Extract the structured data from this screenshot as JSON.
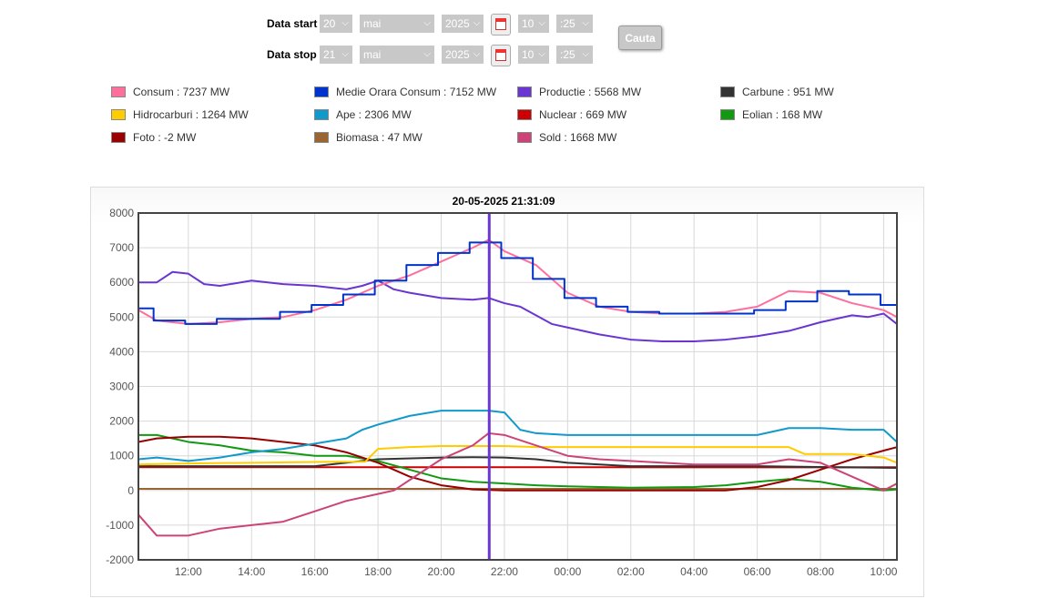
{
  "form": {
    "start_label": "Data start",
    "stop_label": "Data stop",
    "start": {
      "day": "20",
      "month": "mai",
      "year": "2025",
      "hour": "10",
      "minute": ":25"
    },
    "stop": {
      "day": "21",
      "month": "mai",
      "year": "2025",
      "hour": "10",
      "minute": ":25"
    },
    "search_label": "Cauta"
  },
  "legend": [
    {
      "label": "Consum : 7237 MW",
      "color": "#ff6f9c"
    },
    {
      "label": "Medie Orara Consum : 7152 MW",
      "color": "#0033cc"
    },
    {
      "label": "Productie : 5568 MW",
      "color": "#6a35d0"
    },
    {
      "label": "Carbune : 951 MW",
      "color": "#333333"
    },
    {
      "label": "Hidrocarburi : 1264 MW",
      "color": "#ffcc00"
    },
    {
      "label": "Ape : 2306 MW",
      "color": "#1199cc"
    },
    {
      "label": "Nuclear : 669 MW",
      "color": "#cc0000"
    },
    {
      "label": "Eolian : 168 MW",
      "color": "#119911"
    },
    {
      "label": "Foto : -2 MW",
      "color": "#990000"
    },
    {
      "label": "Biomasa : 47 MW",
      "color": "#996633"
    },
    {
      "label": "Sold : 1668 MW",
      "color": "#cc4477"
    }
  ],
  "chart_data": {
    "type": "line",
    "title": "20-05-2025 21:31:09",
    "xlabel": "",
    "ylabel": "",
    "x_unit": "hours from 20-05-2025 00:00",
    "xlim": [
      10.42,
      34.42
    ],
    "ylim": [
      -2000,
      8000
    ],
    "yticks": [
      "-2000",
      "-1000",
      "0",
      "1000",
      "2000",
      "3000",
      "4000",
      "5000",
      "6000",
      "7000",
      "8000"
    ],
    "xticks": [
      {
        "v": 12,
        "l": "12:00"
      },
      {
        "v": 14,
        "l": "14:00"
      },
      {
        "v": 16,
        "l": "16:00"
      },
      {
        "v": 18,
        "l": "18:00"
      },
      {
        "v": 20,
        "l": "20:00"
      },
      {
        "v": 22,
        "l": "22:00"
      },
      {
        "v": 24,
        "l": "00:00"
      },
      {
        "v": 26,
        "l": "02:00"
      },
      {
        "v": 28,
        "l": "04:00"
      },
      {
        "v": 30,
        "l": "06:00"
      },
      {
        "v": 32,
        "l": "08:00"
      },
      {
        "v": 34,
        "l": "10:00"
      }
    ],
    "cursor_x": 21.52,
    "series": [
      {
        "name": "Biomasa",
        "step": false,
        "points": [
          [
            10.42,
            47
          ],
          [
            34.42,
            47
          ]
        ]
      },
      {
        "name": "Nuclear",
        "step": false,
        "points": [
          [
            10.42,
            670
          ],
          [
            20,
            670
          ],
          [
            30,
            668
          ],
          [
            34.42,
            669
          ]
        ]
      },
      {
        "name": "Carbune",
        "step": false,
        "points": [
          [
            10.42,
            700
          ],
          [
            16,
            700
          ],
          [
            17.5,
            850
          ],
          [
            18,
            900
          ],
          [
            20,
            950
          ],
          [
            21,
            960
          ],
          [
            22,
            950
          ],
          [
            23,
            900
          ],
          [
            24,
            800
          ],
          [
            26,
            700
          ],
          [
            30,
            700
          ],
          [
            34.42,
            650
          ]
        ]
      },
      {
        "name": "Eolian",
        "step": false,
        "points": [
          [
            10.42,
            1600
          ],
          [
            11,
            1600
          ],
          [
            12,
            1400
          ],
          [
            13,
            1300
          ],
          [
            14,
            1150
          ],
          [
            15,
            1100
          ],
          [
            16,
            1000
          ],
          [
            17,
            1000
          ],
          [
            18,
            850
          ],
          [
            19,
            600
          ],
          [
            20,
            350
          ],
          [
            21,
            250
          ],
          [
            22,
            200
          ],
          [
            23,
            150
          ],
          [
            24,
            120
          ],
          [
            26,
            80
          ],
          [
            28,
            100
          ],
          [
            29,
            150
          ],
          [
            30,
            250
          ],
          [
            31,
            330
          ],
          [
            32,
            250
          ],
          [
            33,
            80
          ],
          [
            34,
            0
          ],
          [
            34.42,
            30
          ]
        ]
      },
      {
        "name": "Foto",
        "step": false,
        "points": [
          [
            10.42,
            1400
          ],
          [
            11,
            1500
          ],
          [
            12,
            1550
          ],
          [
            13,
            1550
          ],
          [
            14,
            1500
          ],
          [
            15,
            1400
          ],
          [
            16,
            1300
          ],
          [
            17,
            1100
          ],
          [
            18,
            800
          ],
          [
            19,
            400
          ],
          [
            20,
            150
          ],
          [
            21,
            30
          ],
          [
            22,
            0
          ],
          [
            29,
            0
          ],
          [
            30,
            100
          ],
          [
            31,
            300
          ],
          [
            32,
            600
          ],
          [
            33,
            900
          ],
          [
            34,
            1150
          ],
          [
            34.42,
            1250
          ]
        ]
      },
      {
        "name": "Hidrocarburi",
        "step": false,
        "points": [
          [
            10.42,
            750
          ],
          [
            12,
            780
          ],
          [
            14,
            800
          ],
          [
            16,
            820
          ],
          [
            17.6,
            830
          ],
          [
            18,
            1200
          ],
          [
            19,
            1250
          ],
          [
            20,
            1280
          ],
          [
            22,
            1280
          ],
          [
            23,
            1250
          ],
          [
            31,
            1250
          ],
          [
            31.5,
            1050
          ],
          [
            33,
            1050
          ],
          [
            34,
            950
          ],
          [
            34.42,
            800
          ]
        ]
      },
      {
        "name": "Ape",
        "step": false,
        "points": [
          [
            10.42,
            900
          ],
          [
            11,
            950
          ],
          [
            12,
            850
          ],
          [
            13,
            950
          ],
          [
            14,
            1100
          ],
          [
            15,
            1200
          ],
          [
            16,
            1350
          ],
          [
            17,
            1500
          ],
          [
            17.5,
            1750
          ],
          [
            18,
            1900
          ],
          [
            19,
            2150
          ],
          [
            20,
            2300
          ],
          [
            21.5,
            2300
          ],
          [
            22,
            2250
          ],
          [
            22.5,
            1750
          ],
          [
            23,
            1650
          ],
          [
            24,
            1600
          ],
          [
            30,
            1600
          ],
          [
            31,
            1800
          ],
          [
            32,
            1800
          ],
          [
            33,
            1750
          ],
          [
            34,
            1750
          ],
          [
            34.42,
            1400
          ]
        ]
      },
      {
        "name": "Sold",
        "step": false,
        "points": [
          [
            10.42,
            -700
          ],
          [
            11,
            -1300
          ],
          [
            12,
            -1300
          ],
          [
            13,
            -1100
          ],
          [
            14,
            -1000
          ],
          [
            15,
            -900
          ],
          [
            16,
            -600
          ],
          [
            17,
            -300
          ],
          [
            18,
            -100
          ],
          [
            18.5,
            0
          ],
          [
            19,
            300
          ],
          [
            20,
            900
          ],
          [
            21,
            1300
          ],
          [
            21.5,
            1650
          ],
          [
            22,
            1600
          ],
          [
            23,
            1300
          ],
          [
            24,
            1000
          ],
          [
            25,
            900
          ],
          [
            26,
            850
          ],
          [
            28,
            750
          ],
          [
            30,
            750
          ],
          [
            31,
            900
          ],
          [
            32,
            800
          ],
          [
            33,
            400
          ],
          [
            34,
            0
          ],
          [
            34.42,
            200
          ]
        ]
      },
      {
        "name": "Productie",
        "step": false,
        "points": [
          [
            10.42,
            6000
          ],
          [
            11,
            6000
          ],
          [
            11.5,
            6300
          ],
          [
            12,
            6250
          ],
          [
            12.5,
            5950
          ],
          [
            13,
            5900
          ],
          [
            14,
            6050
          ],
          [
            15,
            5950
          ],
          [
            16,
            5900
          ],
          [
            17,
            5800
          ],
          [
            17.5,
            5900
          ],
          [
            18,
            6050
          ],
          [
            18.5,
            5800
          ],
          [
            19,
            5700
          ],
          [
            20,
            5550
          ],
          [
            21,
            5500
          ],
          [
            21.5,
            5550
          ],
          [
            22,
            5400
          ],
          [
            22.5,
            5300
          ],
          [
            23,
            5050
          ],
          [
            23.5,
            4800
          ],
          [
            24,
            4700
          ],
          [
            25,
            4500
          ],
          [
            26,
            4350
          ],
          [
            27,
            4300
          ],
          [
            28,
            4300
          ],
          [
            29,
            4350
          ],
          [
            30,
            4450
          ],
          [
            31,
            4600
          ],
          [
            32,
            4850
          ],
          [
            33,
            5050
          ],
          [
            33.5,
            5000
          ],
          [
            34,
            5100
          ],
          [
            34.42,
            4800
          ]
        ]
      },
      {
        "name": "Consum",
        "step": false,
        "points": [
          [
            10.42,
            5200
          ],
          [
            11,
            4900
          ],
          [
            12,
            4800
          ],
          [
            13,
            4850
          ],
          [
            14,
            4950
          ],
          [
            15,
            5000
          ],
          [
            16,
            5200
          ],
          [
            17,
            5500
          ],
          [
            18,
            5900
          ],
          [
            19,
            6200
          ],
          [
            20,
            6600
          ],
          [
            21,
            7000
          ],
          [
            21.5,
            7230
          ],
          [
            22,
            6900
          ],
          [
            23,
            6500
          ],
          [
            24,
            5700
          ],
          [
            25,
            5300
          ],
          [
            26,
            5150
          ],
          [
            27,
            5100
          ],
          [
            28,
            5100
          ],
          [
            29,
            5150
          ],
          [
            30,
            5300
          ],
          [
            31,
            5750
          ],
          [
            32,
            5700
          ],
          [
            33,
            5400
          ],
          [
            34,
            5200
          ],
          [
            34.42,
            5000
          ]
        ]
      },
      {
        "name": "Medie Orara Consum",
        "step": true,
        "points": [
          [
            10.42,
            5250
          ],
          [
            10.9,
            4900
          ],
          [
            11.9,
            4800
          ],
          [
            12.9,
            4950
          ],
          [
            14,
            4950
          ],
          [
            14.9,
            5150
          ],
          [
            15.9,
            5350
          ],
          [
            16.9,
            5650
          ],
          [
            17.9,
            6050
          ],
          [
            18.9,
            6500
          ],
          [
            19.9,
            6850
          ],
          [
            20.9,
            7150
          ],
          [
            21.9,
            6700
          ],
          [
            22.9,
            6100
          ],
          [
            23.9,
            5550
          ],
          [
            24.9,
            5300
          ],
          [
            25.9,
            5150
          ],
          [
            26.9,
            5100
          ],
          [
            27.9,
            5100
          ],
          [
            28.9,
            5100
          ],
          [
            29.9,
            5200
          ],
          [
            30.9,
            5450
          ],
          [
            31.9,
            5750
          ],
          [
            32.9,
            5650
          ],
          [
            33.9,
            5350
          ],
          [
            34.42,
            5000
          ]
        ]
      }
    ]
  }
}
